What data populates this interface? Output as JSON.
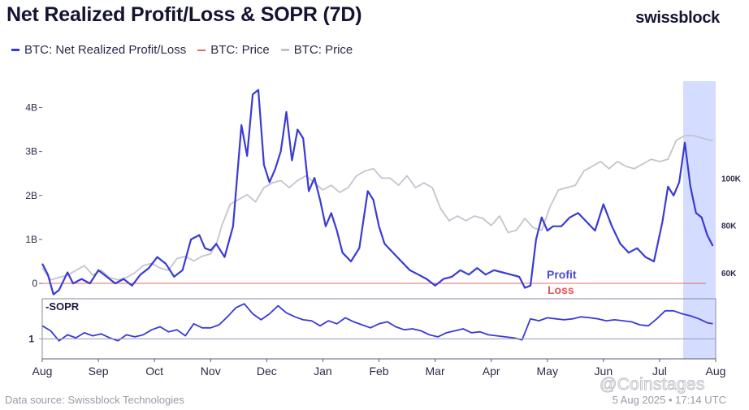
{
  "header": {
    "title": "Net Realized Profit/Loss & SOPR (7D)",
    "brand": "swissblock"
  },
  "legend": [
    {
      "label": "BTC: Net Realized Profit/Loss",
      "color": "#3a3ad6"
    },
    {
      "label": "BTC: Price",
      "color": "#e06b6b"
    },
    {
      "label": "BTC: Price",
      "color": "#c4c4cf"
    }
  ],
  "annotations": {
    "profit": "Profit",
    "loss": "Loss",
    "sopr_label": "-SOPR"
  },
  "footer": {
    "source": "Data source: Swissblock Technologies",
    "timestamp": "5 Aug 2025 • 17:14 UTC",
    "watermark": "@Coinstages"
  },
  "colors": {
    "profit_loss_line": "#3a3ad6",
    "price_line": "#c4c4cf",
    "zero_line": "#e06b6b",
    "highlight": "#cdd6ff",
    "profit_text": "#4a4ad8",
    "loss_text": "#e05555"
  },
  "chart_data": [
    {
      "type": "line",
      "x_ticks": [
        "Aug",
        "Sep",
        "Oct",
        "Nov",
        "Dec",
        "Jan",
        "Feb",
        "Mar",
        "Apr",
        "May",
        "Jun",
        "Jul",
        "Aug"
      ],
      "x_range": [
        0,
        12
      ],
      "left_axis": {
        "ticks": [
          "0",
          "1B",
          "2B",
          "3B",
          "4B"
        ],
        "values": [
          0,
          1,
          2,
          3,
          4
        ],
        "range": [
          -0.35,
          4.6
        ]
      },
      "right_axis": {
        "ticks": [
          "60K",
          "80K",
          "100K"
        ],
        "values": [
          60,
          80,
          100
        ],
        "range": [
          49,
          141
        ]
      },
      "highlight_range": [
        11.42,
        12.0
      ],
      "series": [
        {
          "name": "BTC: Net Realized Profit/Loss",
          "axis": "left",
          "x": [
            0,
            0.1,
            0.2,
            0.3,
            0.45,
            0.55,
            0.7,
            0.85,
            1.0,
            1.15,
            1.3,
            1.45,
            1.6,
            1.75,
            1.9,
            2.05,
            2.2,
            2.35,
            2.5,
            2.65,
            2.8,
            2.9,
            3.0,
            3.1,
            3.25,
            3.4,
            3.55,
            3.65,
            3.75,
            3.85,
            3.95,
            4.05,
            4.15,
            4.25,
            4.35,
            4.45,
            4.55,
            4.65,
            4.75,
            4.85,
            4.95,
            5.05,
            5.15,
            5.25,
            5.35,
            5.5,
            5.65,
            5.8,
            5.9,
            6.0,
            6.1,
            6.25,
            6.4,
            6.55,
            6.7,
            6.85,
            7.0,
            7.15,
            7.3,
            7.45,
            7.6,
            7.75,
            7.9,
            8.05,
            8.2,
            8.35,
            8.5,
            8.6,
            8.7,
            8.8,
            8.9,
            9.0,
            9.1,
            9.25,
            9.4,
            9.55,
            9.7,
            9.85,
            10.0,
            10.15,
            10.3,
            10.45,
            10.6,
            10.75,
            10.9,
            11.05,
            11.15,
            11.25,
            11.35,
            11.45,
            11.55,
            11.65,
            11.75,
            11.85,
            11.95
          ],
          "values": [
            0.45,
            0.2,
            -0.25,
            -0.15,
            0.25,
            0.0,
            0.1,
            0.0,
            0.3,
            0.15,
            0.0,
            0.1,
            -0.05,
            0.2,
            0.35,
            0.6,
            0.45,
            0.15,
            0.3,
            1.0,
            1.1,
            0.8,
            0.75,
            0.9,
            0.6,
            1.3,
            3.6,
            2.9,
            4.3,
            4.4,
            2.7,
            2.3,
            2.6,
            3.0,
            3.9,
            2.8,
            3.5,
            3.3,
            2.1,
            2.4,
            1.9,
            1.3,
            1.6,
            1.2,
            0.7,
            0.5,
            0.8,
            2.1,
            1.9,
            1.3,
            0.9,
            0.7,
            0.5,
            0.3,
            0.2,
            0.1,
            -0.05,
            0.1,
            0.15,
            0.3,
            0.2,
            0.35,
            0.2,
            0.3,
            0.25,
            0.2,
            0.15,
            -0.1,
            -0.05,
            1.0,
            1.5,
            1.2,
            1.3,
            1.3,
            1.5,
            1.6,
            1.4,
            1.2,
            1.8,
            1.3,
            0.9,
            0.7,
            0.8,
            0.6,
            0.5,
            1.4,
            2.2,
            2.0,
            2.3,
            3.2,
            2.2,
            1.6,
            1.5,
            1.1,
            0.85
          ]
        },
        {
          "name": "BTC: Price",
          "axis": "right",
          "x": [
            0,
            0.15,
            0.3,
            0.45,
            0.6,
            0.75,
            0.9,
            1.05,
            1.2,
            1.35,
            1.5,
            1.65,
            1.8,
            1.95,
            2.1,
            2.25,
            2.4,
            2.55,
            2.7,
            2.85,
            3.0,
            3.1,
            3.2,
            3.35,
            3.5,
            3.65,
            3.8,
            3.95,
            4.1,
            4.25,
            4.4,
            4.55,
            4.7,
            4.85,
            5.0,
            5.15,
            5.3,
            5.45,
            5.6,
            5.75,
            5.9,
            6.05,
            6.2,
            6.35,
            6.5,
            6.65,
            6.8,
            6.95,
            7.1,
            7.25,
            7.4,
            7.55,
            7.7,
            7.85,
            8.0,
            8.15,
            8.3,
            8.45,
            8.6,
            8.75,
            8.9,
            9.05,
            9.2,
            9.35,
            9.5,
            9.65,
            9.8,
            9.95,
            10.1,
            10.25,
            10.4,
            10.55,
            10.7,
            10.85,
            11.0,
            11.15,
            11.3,
            11.45,
            11.6,
            11.75,
            11.9,
            11.95
          ],
          "values": [
            62,
            57,
            58,
            59,
            61,
            63,
            59,
            61,
            58,
            57,
            58,
            60,
            63,
            64,
            62,
            61,
            66,
            67,
            65,
            67,
            68,
            72,
            80,
            89,
            91,
            93,
            90,
            96,
            98,
            99,
            96,
            99,
            101,
            98,
            95,
            97,
            94,
            96,
            101,
            103,
            104,
            100,
            100,
            97,
            101,
            96,
            98,
            96,
            87,
            82,
            84,
            82,
            84,
            83,
            80,
            84,
            77,
            78,
            83,
            79,
            78,
            88,
            95,
            96,
            97,
            103,
            105,
            107,
            104,
            107,
            105,
            104,
            106,
            108,
            107,
            108,
            116,
            118,
            118,
            117,
            116,
            116
          ]
        }
      ],
      "reference_lines": [
        {
          "y": 0,
          "axis": "left",
          "color": "#e06b6b"
        }
      ]
    },
    {
      "type": "line",
      "label": "-SOPR",
      "y_ticks": [
        "1"
      ],
      "y_tick_values": [
        1.0
      ],
      "y_range": [
        0.98,
        1.04
      ],
      "series": [
        {
          "name": "-SOPR",
          "x": [
            0,
            0.15,
            0.3,
            0.45,
            0.6,
            0.75,
            0.9,
            1.05,
            1.2,
            1.35,
            1.5,
            1.65,
            1.8,
            1.95,
            2.1,
            2.25,
            2.4,
            2.55,
            2.7,
            2.85,
            3.0,
            3.15,
            3.3,
            3.45,
            3.6,
            3.75,
            3.9,
            4.05,
            4.2,
            4.35,
            4.5,
            4.65,
            4.8,
            4.95,
            5.1,
            5.25,
            5.4,
            5.55,
            5.7,
            5.85,
            6.0,
            6.15,
            6.3,
            6.45,
            6.6,
            6.75,
            6.9,
            7.05,
            7.2,
            7.35,
            7.5,
            7.65,
            7.8,
            7.95,
            8.1,
            8.25,
            8.4,
            8.55,
            8.7,
            8.85,
            9.0,
            9.15,
            9.3,
            9.45,
            9.6,
            9.75,
            9.9,
            10.05,
            10.2,
            10.35,
            10.5,
            10.65,
            10.8,
            10.95,
            11.1,
            11.25,
            11.4,
            11.55,
            11.7,
            11.85,
            11.95
          ],
          "values": [
            1.013,
            1.008,
            0.998,
            1.004,
            1.001,
            1.006,
            1.003,
            1.005,
            1.001,
            0.998,
            1.004,
            1.002,
            1.004,
            1.009,
            1.012,
            1.007,
            1.009,
            1.003,
            1.015,
            1.011,
            1.011,
            1.014,
            1.022,
            1.031,
            1.035,
            1.025,
            1.019,
            1.025,
            1.033,
            1.026,
            1.022,
            1.019,
            1.018,
            1.013,
            1.018,
            1.015,
            1.021,
            1.017,
            1.014,
            1.011,
            1.015,
            1.017,
            1.012,
            1.009,
            1.01,
            1.008,
            1.004,
            1.002,
            1.006,
            1.008,
            1.01,
            1.006,
            1.007,
            1.004,
            1.003,
            1.002,
            1.001,
            0.999,
            1.02,
            1.018,
            1.021,
            1.02,
            1.019,
            1.02,
            1.022,
            1.021,
            1.02,
            1.018,
            1.019,
            1.018,
            1.017,
            1.014,
            1.013,
            1.02,
            1.028,
            1.028,
            1.025,
            1.023,
            1.02,
            1.016,
            1.015
          ]
        }
      ]
    }
  ]
}
